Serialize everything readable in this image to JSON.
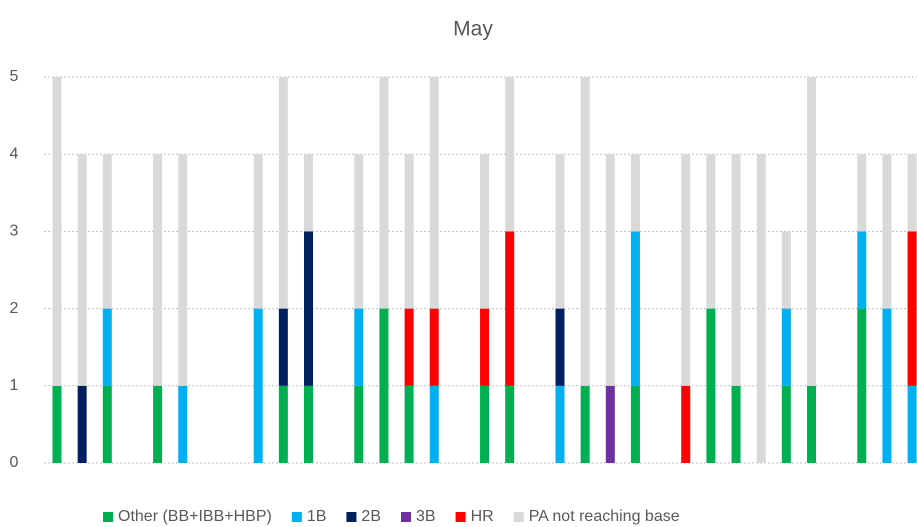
{
  "chart_data": {
    "type": "stacked_bar",
    "title": "May",
    "categories": [
      null,
      null,
      null,
      null,
      null,
      null,
      null,
      null,
      null,
      null,
      null,
      null,
      null,
      null,
      null,
      null,
      null,
      null,
      null,
      null,
      null,
      null,
      null,
      null,
      null,
      null,
      null,
      null,
      null,
      null,
      null,
      null,
      null,
      null,
      null
    ],
    "series": [
      {
        "name": "Other (BB+IBB+HBP)",
        "color": "#00b050",
        "values": [
          1,
          0,
          1,
          0,
          1,
          0,
          0,
          0,
          0,
          1,
          1,
          0,
          1,
          2,
          1,
          0,
          0,
          1,
          1,
          0,
          0,
          1,
          0,
          1,
          0,
          0,
          2,
          1,
          0,
          1,
          1,
          0,
          2,
          0,
          0
        ]
      },
      {
        "name": "1B",
        "color": "#00b0f0",
        "values": [
          0,
          0,
          1,
          0,
          0,
          1,
          0,
          0,
          2,
          0,
          0,
          0,
          1,
          0,
          0,
          1,
          0,
          0,
          0,
          0,
          1,
          0,
          0,
          2,
          0,
          0,
          0,
          0,
          0,
          1,
          0,
          0,
          1,
          2,
          1
        ]
      },
      {
        "name": "2B",
        "color": "#002060",
        "values": [
          0,
          1,
          0,
          0,
          0,
          0,
          0,
          0,
          0,
          1,
          2,
          0,
          0,
          0,
          0,
          0,
          0,
          0,
          0,
          0,
          1,
          0,
          0,
          0,
          0,
          0,
          0,
          0,
          0,
          0,
          0,
          0,
          0,
          0,
          0
        ]
      },
      {
        "name": "3B",
        "color": "#7030a0",
        "values": [
          0,
          0,
          0,
          0,
          0,
          0,
          0,
          0,
          0,
          0,
          0,
          0,
          0,
          0,
          0,
          0,
          0,
          0,
          0,
          0,
          0,
          0,
          1,
          0,
          0,
          0,
          0,
          0,
          0,
          0,
          0,
          0,
          0,
          0,
          0
        ]
      },
      {
        "name": "HR",
        "color": "#ff0000",
        "values": [
          0,
          0,
          0,
          0,
          0,
          0,
          0,
          0,
          0,
          0,
          0,
          0,
          0,
          0,
          1,
          1,
          0,
          1,
          2,
          0,
          0,
          0,
          0,
          0,
          0,
          1,
          0,
          0,
          0,
          0,
          0,
          0,
          0,
          0,
          2
        ]
      },
      {
        "name": "PA not reaching base",
        "color": "#d9d9d9",
        "values": [
          4,
          3,
          2,
          0,
          3,
          3,
          0,
          0,
          2,
          3,
          1,
          0,
          2,
          3,
          2,
          3,
          0,
          2,
          2,
          0,
          2,
          4,
          3,
          1,
          0,
          3,
          2,
          3,
          4,
          1,
          4,
          0,
          1,
          2,
          1
        ]
      }
    ],
    "ylim": [
      0,
      5
    ],
    "yticks": [
      0,
      1,
      2,
      3,
      4,
      5
    ],
    "grid": true
  }
}
